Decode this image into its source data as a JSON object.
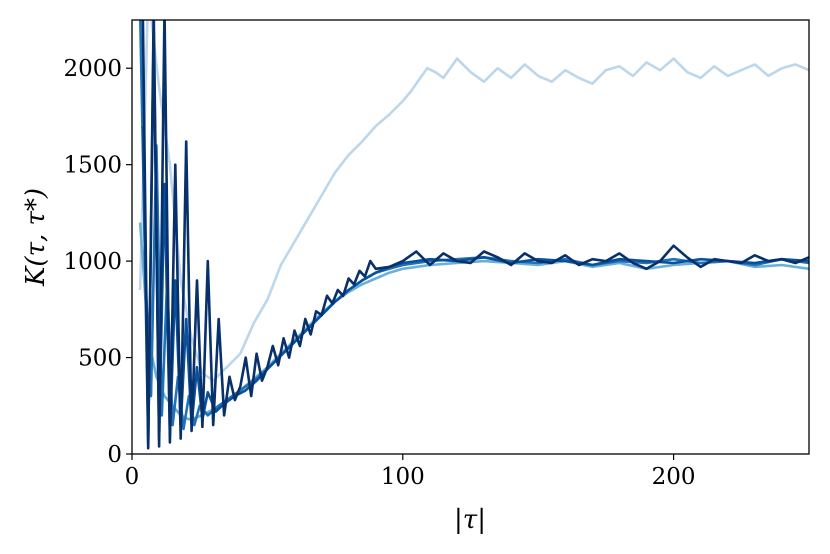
{
  "chart_data": {
    "type": "line",
    "title": "",
    "xlabel": "|τ|",
    "ylabel": "K(τ, τ*)",
    "xlim": [
      0,
      250
    ],
    "ylim": [
      0,
      2250
    ],
    "xticks": [
      0,
      100,
      200
    ],
    "xtick_labels": [
      "0",
      "100",
      "200"
    ],
    "yticks": [
      0,
      500,
      1000,
      1500,
      2000
    ],
    "ytick_labels": [
      "0",
      "500",
      "1000",
      "1500",
      "2000"
    ],
    "grid": false,
    "legend": "none",
    "series": [
      {
        "color": "#bcd7ec",
        "x": [
          3,
          6,
          10,
          14,
          18,
          22,
          26,
          30,
          35,
          40,
          45,
          50,
          55,
          60,
          65,
          70,
          75,
          80,
          85,
          90,
          95,
          100,
          103,
          106,
          109,
          112,
          115,
          120,
          125,
          130,
          135,
          140,
          145,
          150,
          155,
          160,
          165,
          170,
          175,
          180,
          185,
          190,
          195,
          200,
          205,
          210,
          215,
          220,
          225,
          230,
          235,
          240,
          245,
          250
        ],
        "y": [
          850,
          2400,
          1900,
          1500,
          900,
          600,
          420,
          380,
          450,
          520,
          680,
          800,
          980,
          1100,
          1220,
          1340,
          1460,
          1550,
          1620,
          1700,
          1760,
          1830,
          1880,
          1940,
          2000,
          1980,
          1950,
          2050,
          1980,
          1930,
          2000,
          1950,
          2020,
          1960,
          1930,
          1990,
          1950,
          1920,
          1990,
          2010,
          1960,
          2030,
          1990,
          2050,
          1980,
          1950,
          2010,
          1960,
          1990,
          2020,
          1960,
          2000,
          2020,
          1990
        ]
      },
      {
        "color": "#6baed6",
        "x": [
          3,
          6,
          9,
          12,
          15,
          18,
          21,
          24,
          27,
          30,
          35,
          40,
          45,
          50,
          55,
          60,
          65,
          70,
          75,
          80,
          85,
          90,
          95,
          100,
          110,
          120,
          130,
          140,
          150,
          160,
          170,
          180,
          190,
          200,
          210,
          220,
          230,
          240,
          250
        ],
        "y": [
          1200,
          600,
          400,
          300,
          250,
          200,
          180,
          190,
          210,
          230,
          280,
          330,
          390,
          450,
          520,
          590,
          660,
          730,
          790,
          840,
          880,
          910,
          940,
          960,
          980,
          990,
          1000,
          990,
          980,
          1000,
          970,
          990,
          960,
          980,
          990,
          1000,
          970,
          980,
          960
        ]
      },
      {
        "color": "#2171b5",
        "x": [
          3,
          5,
          7,
          9,
          11,
          13,
          15,
          17,
          19,
          21,
          23,
          25,
          28,
          32,
          36,
          40,
          45,
          50,
          55,
          60,
          65,
          70,
          75,
          80,
          85,
          90,
          95,
          100,
          110,
          120,
          130,
          140,
          150,
          160,
          170,
          180,
          190,
          200,
          210,
          220,
          230,
          240,
          250
        ],
        "y": [
          2300,
          900,
          300,
          1600,
          200,
          900,
          150,
          400,
          130,
          300,
          150,
          250,
          200,
          250,
          290,
          330,
          380,
          440,
          510,
          580,
          650,
          720,
          790,
          850,
          900,
          940,
          960,
          980,
          1000,
          1010,
          1020,
          1000,
          990,
          1010,
          980,
          1000,
          990,
          1010,
          990,
          1000,
          980,
          1010,
          990
        ]
      },
      {
        "color": "#08519c",
        "x": [
          4,
          6,
          8,
          10,
          12,
          14,
          16,
          18,
          20,
          22,
          24,
          26,
          28,
          31,
          34,
          38,
          42,
          46,
          50,
          55,
          60,
          65,
          70,
          75,
          80,
          85,
          90,
          95,
          100,
          105,
          110,
          120,
          130,
          140,
          150,
          160,
          170,
          180,
          190,
          200,
          210,
          220,
          230,
          240,
          250
        ],
        "y": [
          1700,
          50,
          2200,
          80,
          1400,
          100,
          900,
          150,
          700,
          150,
          450,
          180,
          320,
          220,
          260,
          300,
          330,
          380,
          440,
          510,
          580,
          650,
          720,
          790,
          850,
          900,
          940,
          970,
          990,
          1000,
          1010,
          1000,
          1020,
          990,
          1010,
          1000,
          980,
          1010,
          1000,
          990,
          1010,
          1000,
          990,
          1010,
          1000
        ]
      },
      {
        "color": "#08306b",
        "x": [
          4,
          6,
          8,
          10,
          12,
          14,
          16,
          18,
          20,
          22,
          24,
          26,
          28,
          30,
          32,
          34,
          36,
          38,
          40,
          42,
          44,
          46,
          48,
          50,
          52,
          54,
          56,
          58,
          60,
          62,
          64,
          66,
          68,
          70,
          72,
          74,
          76,
          78,
          80,
          82,
          84,
          86,
          88,
          90,
          95,
          100,
          105,
          110,
          115,
          120,
          125,
          130,
          135,
          140,
          145,
          150,
          155,
          160,
          165,
          170,
          175,
          180,
          185,
          190,
          195,
          200,
          205,
          210,
          215,
          220,
          225,
          230,
          235,
          240,
          245,
          250
        ],
        "y": [
          2300,
          30,
          2300,
          40,
          2300,
          60,
          1500,
          80,
          1620,
          120,
          900,
          140,
          1000,
          150,
          700,
          200,
          400,
          280,
          350,
          500,
          300,
          520,
          380,
          450,
          560,
          460,
          600,
          500,
          640,
          560,
          700,
          620,
          740,
          720,
          820,
          780,
          850,
          820,
          910,
          880,
          950,
          920,
          1000,
          960,
          970,
          1000,
          1050,
          980,
          1040,
          1000,
          990,
          1050,
          1020,
          980,
          1040,
          1000,
          990,
          1030,
          980,
          1010,
          1000,
          1040,
          990,
          960,
          1000,
          1080,
          1020,
          970,
          1010,
          1000,
          990,
          1030,
          1000,
          1010,
          990,
          1020
        ]
      }
    ]
  }
}
